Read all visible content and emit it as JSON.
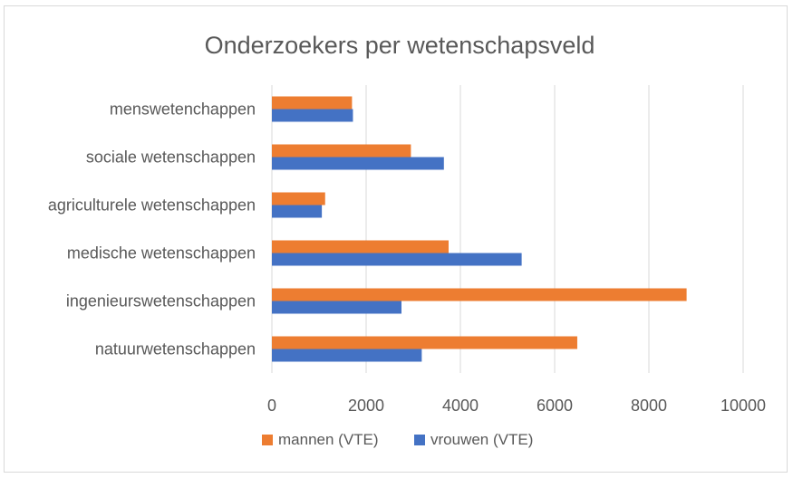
{
  "chart_data": {
    "type": "bar",
    "orientation": "horizontal",
    "title": "Onderzoekers  per wetenschapsveld",
    "categories": [
      "menswetenchappen",
      "sociale wetenschappen",
      "agriculturele wetenschappen",
      "medische wetenschappen",
      "ingenieurswetenschappen",
      "natuurwetenschappen"
    ],
    "series": [
      {
        "name": "mannen (VTE)",
        "color": "#ED7D31",
        "values": [
          1700,
          2950,
          1130,
          3750,
          8800,
          6480
        ]
      },
      {
        "name": "vrouwen (VTE)",
        "color": "#4472C4",
        "values": [
          1720,
          3650,
          1060,
          5300,
          2750,
          3180
        ]
      }
    ],
    "xlim": [
      0,
      10000
    ],
    "xticks": [
      "0",
      "2000",
      "4000",
      "6000",
      "8000",
      "10000"
    ],
    "grid": true,
    "legend_position": "bottom",
    "xlabel": "",
    "ylabel": ""
  }
}
